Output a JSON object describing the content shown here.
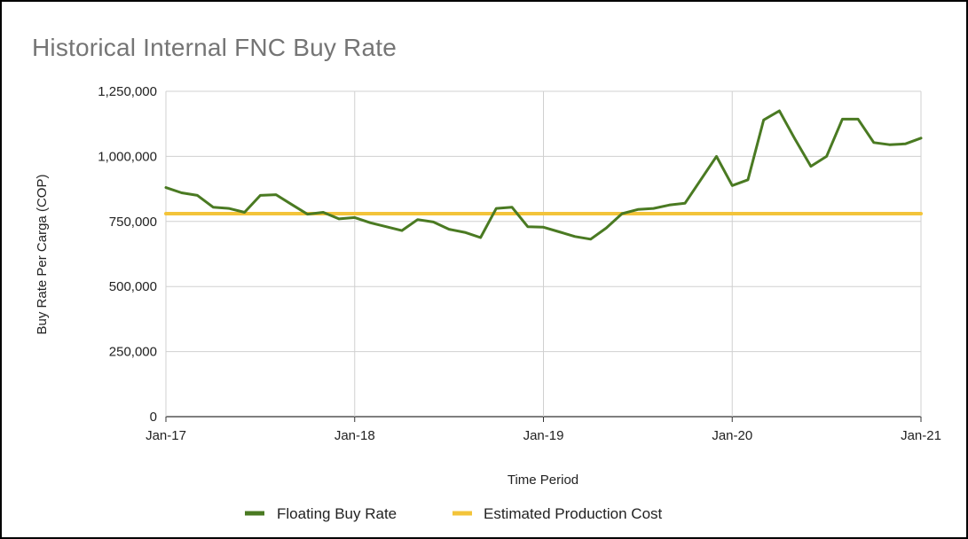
{
  "chart_data": {
    "type": "line",
    "title": "Historical Internal FNC Buy Rate",
    "xlabel": "Time Period",
    "ylabel": "Buy Rate Per Carga (COP)",
    "x_tick_labels": [
      "Jan-17",
      "Jan-18",
      "Jan-19",
      "Jan-20",
      "Jan-21"
    ],
    "x_range": [
      "2017-01",
      "2021-01"
    ],
    "y_tick_labels": [
      "0",
      "250,000",
      "500,000",
      "750,000",
      "1,000,000",
      "1,250,000"
    ],
    "ylim": [
      0,
      1250000
    ],
    "grid": true,
    "legend_position": "bottom",
    "series": [
      {
        "name": "Floating Buy Rate",
        "color": "#4a7a22",
        "points": [
          [
            "2017-01",
            880000
          ],
          [
            "2017-02",
            860000
          ],
          [
            "2017-03",
            850000
          ],
          [
            "2017-04",
            805000
          ],
          [
            "2017-05",
            800000
          ],
          [
            "2017-06",
            785000
          ],
          [
            "2017-07",
            850000
          ],
          [
            "2017-08",
            853000
          ],
          [
            "2017-09",
            815000
          ],
          [
            "2017-10",
            778000
          ],
          [
            "2017-11",
            785000
          ],
          [
            "2017-12",
            760000
          ],
          [
            "2018-01",
            765000
          ],
          [
            "2018-02",
            745000
          ],
          [
            "2018-03",
            730000
          ],
          [
            "2018-04",
            715000
          ],
          [
            "2018-05",
            757000
          ],
          [
            "2018-06",
            748000
          ],
          [
            "2018-07",
            720000
          ],
          [
            "2018-08",
            708000
          ],
          [
            "2018-09",
            688000
          ],
          [
            "2018-10",
            800000
          ],
          [
            "2018-11",
            805000
          ],
          [
            "2018-12",
            730000
          ],
          [
            "2019-01",
            728000
          ],
          [
            "2019-02",
            710000
          ],
          [
            "2019-03",
            692000
          ],
          [
            "2019-04",
            682000
          ],
          [
            "2019-05",
            725000
          ],
          [
            "2019-06",
            780000
          ],
          [
            "2019-07",
            796000
          ],
          [
            "2019-08",
            800000
          ],
          [
            "2019-09",
            813000
          ],
          [
            "2019-10",
            820000
          ],
          [
            "2019-11",
            910000
          ],
          [
            "2019-12",
            1000000
          ],
          [
            "2020-01",
            888000
          ],
          [
            "2020-02",
            910000
          ],
          [
            "2020-03",
            1140000
          ],
          [
            "2020-04",
            1175000
          ],
          [
            "2020-05",
            1065000
          ],
          [
            "2020-06",
            962000
          ],
          [
            "2020-07",
            1000000
          ],
          [
            "2020-08",
            1143000
          ],
          [
            "2020-09",
            1143000
          ],
          [
            "2020-10",
            1053000
          ],
          [
            "2020-11",
            1045000
          ],
          [
            "2020-12",
            1048000
          ],
          [
            "2021-01",
            1070000
          ]
        ]
      },
      {
        "name": "Estimated Production Cost",
        "color": "#f3c43a",
        "points": [
          [
            "2017-01",
            780000
          ],
          [
            "2021-01",
            780000
          ]
        ]
      }
    ]
  }
}
